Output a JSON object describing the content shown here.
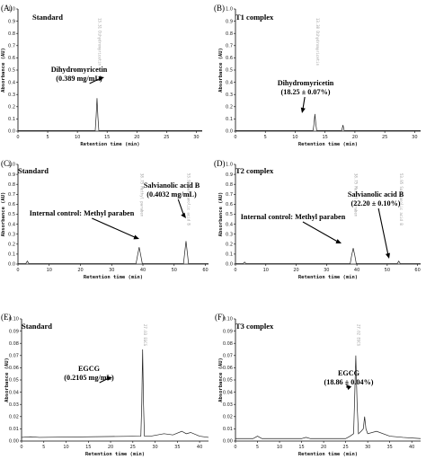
{
  "chart_data": [
    {
      "panel": "(A)",
      "title": "Standard",
      "type": "line",
      "xlabel": "Retention time (min)",
      "ylabel": "Absorbance (AU)",
      "xlim": [
        0,
        31
      ],
      "ylim": [
        0,
        1.0
      ],
      "xticks": [
        "0",
        "5",
        "10",
        "15",
        "20",
        "25",
        "30"
      ],
      "yticks": [
        "0.0",
        "0.1",
        "0.2",
        "0.3",
        "0.4",
        "0.5",
        "0.6",
        "0.7",
        "0.8",
        "0.9",
        "1.0"
      ],
      "series": [
        {
          "x": [
            0,
            13.0,
            13.15,
            13.3,
            13.45,
            13.6,
            31
          ],
          "y": [
            0.005,
            0.005,
            0.12,
            0.27,
            0.12,
            0.005,
            0.005
          ]
        }
      ],
      "peak_label": "13.31  Dihydromyricetin",
      "annotation": {
        "text": [
          "Dihydromyricetin",
          "(0.389 mg/mL)"
        ],
        "x": 13.3,
        "y": 0.27
      }
    },
    {
      "panel": "(B)",
      "title": "T1 complex",
      "type": "line",
      "xlabel": "Retention time (min)",
      "ylabel": "Absorbance (AU)",
      "xlim": [
        0,
        31
      ],
      "ylim": [
        0,
        1.0
      ],
      "xticks": [
        "0",
        "5",
        "10",
        "15",
        "20",
        "25",
        "30"
      ],
      "yticks": [
        "0.0",
        "0.1",
        "0.2",
        "0.3",
        "0.4",
        "0.5",
        "0.6",
        "0.7",
        "0.8",
        "0.9",
        "1.0"
      ],
      "series": [
        {
          "x": [
            0,
            13.0,
            13.15,
            13.3,
            13.45,
            13.6,
            17.8,
            18.0,
            18.2,
            31
          ],
          "y": [
            0.005,
            0.005,
            0.06,
            0.14,
            0.06,
            0.005,
            0.005,
            0.05,
            0.005,
            0.005
          ]
        }
      ],
      "peak_label": "13.30  Dihydromyricetin",
      "annotation": {
        "text": [
          "Dihydromyricetin",
          "(18.25 ± 0.07%)"
        ],
        "x": 13.3,
        "y": 0.14
      }
    },
    {
      "panel": "(C)",
      "title": "Standard",
      "type": "line",
      "xlabel": "Retention time (min)",
      "ylabel": "Absorbance (AU)",
      "xlim": [
        0,
        61
      ],
      "ylim": [
        0,
        1.0
      ],
      "xticks": [
        "0",
        "10",
        "20",
        "30",
        "40",
        "50",
        "60"
      ],
      "yticks": [
        "0.0",
        "0.1",
        "0.2",
        "0.3",
        "0.4",
        "0.5",
        "0.6",
        "0.7",
        "0.8",
        "0.9",
        "1.0"
      ],
      "series": [
        {
          "x": [
            0,
            2.5,
            3,
            3.5,
            37.8,
            38.3,
            38.8,
            39.3,
            39.8,
            53.0,
            53.4,
            53.8,
            54.2,
            54.6,
            61
          ],
          "y": [
            0.005,
            0.005,
            0.03,
            0.005,
            0.005,
            0.09,
            0.17,
            0.09,
            0.005,
            0.005,
            0.12,
            0.23,
            0.12,
            0.005,
            0.005
          ]
        }
      ],
      "peak_labels": [
        "38.75  Methyl paraben",
        "53.95  Salvianolic acid B"
      ],
      "annotations": [
        {
          "text": [
            "Internal control: Methyl paraben"
          ],
          "x": 38.8,
          "y": 0.17
        },
        {
          "text": [
            "Salvianolic acid B",
            "(0.4032 mg/mL)"
          ],
          "x": 53.8,
          "y": 0.23
        }
      ]
    },
    {
      "panel": "(D)",
      "title": "T2 complex",
      "type": "line",
      "xlabel": "Retention time (min)",
      "ylabel": "Absorbance (AU)",
      "xlim": [
        0,
        61
      ],
      "ylim": [
        0,
        1.0
      ],
      "xticks": [
        "0",
        "10",
        "20",
        "30",
        "40",
        "50",
        "60"
      ],
      "yticks": [
        "0.0",
        "0.1",
        "0.2",
        "0.3",
        "0.4",
        "0.5",
        "0.6",
        "0.7",
        "0.8",
        "0.9",
        "1.0"
      ],
      "series": [
        {
          "x": [
            0,
            2.5,
            3,
            3.5,
            37.8,
            38.3,
            38.8,
            39.3,
            39.8,
            53.3,
            53.8,
            54.3,
            61
          ],
          "y": [
            0.005,
            0.005,
            0.02,
            0.005,
            0.005,
            0.09,
            0.16,
            0.09,
            0.005,
            0.005,
            0.03,
            0.005,
            0.005
          ]
        }
      ],
      "peak_labels": [
        "38.75  Methyl paraben",
        "53.95  Salvianolic acid B"
      ],
      "annotations": [
        {
          "text": [
            "Internal control: Methyl paraben"
          ],
          "x": 38.8,
          "y": 0.16
        },
        {
          "text": [
            "Salvianolic acid B",
            "(22.20 ± 0.10%)"
          ],
          "x": 53.8,
          "y": 0.03
        }
      ]
    },
    {
      "panel": "(E)",
      "title": "Standard",
      "type": "line",
      "xlabel": "Retention time (min)",
      "ylabel": "Absorbance (AU)",
      "xlim": [
        0,
        42
      ],
      "ylim": [
        0,
        0.1
      ],
      "xticks": [
        "0",
        "5",
        "10",
        "15",
        "20",
        "25",
        "30",
        "35",
        "40"
      ],
      "yticks": [
        "0.00",
        "0.01",
        "0.02",
        "0.03",
        "0.04",
        "0.05",
        "0.06",
        "0.07",
        "0.08",
        "0.09",
        "0.10"
      ],
      "series": [
        {
          "x": [
            0,
            2,
            4,
            26.8,
            27.0,
            27.2,
            27.4,
            27.6,
            29,
            32,
            34,
            36,
            37,
            38,
            40,
            42
          ],
          "y": [
            0.003,
            0.0035,
            0.003,
            0.004,
            0.03,
            0.075,
            0.03,
            0.004,
            0.004,
            0.006,
            0.005,
            0.008,
            0.006,
            0.007,
            0.004,
            0.003
          ]
        }
      ],
      "peak_label": "27.03  EGCG",
      "annotation": {
        "text": [
          "EGCG",
          "(0.2105 mg/mL)"
        ],
        "x": 27.2,
        "y": 0.075
      }
    },
    {
      "panel": "(F)",
      "title": "T3 complex",
      "type": "line",
      "xlabel": "Retention time (min)",
      "ylabel": "Absorbance (AU)",
      "xlim": [
        0,
        42
      ],
      "ylim": [
        0,
        0.1
      ],
      "xticks": [
        "0",
        "5",
        "10",
        "15",
        "20",
        "25",
        "30",
        "35",
        "40"
      ],
      "yticks": [
        "0.00",
        "0.01",
        "0.02",
        "0.03",
        "0.04",
        "0.05",
        "0.06",
        "0.07",
        "0.08",
        "0.09",
        "0.10"
      ],
      "series": [
        {
          "x": [
            0,
            4,
            5,
            6,
            15,
            16,
            17,
            25,
            26,
            26.8,
            27.0,
            27.3,
            27.6,
            27.9,
            28.5,
            29.0,
            29.3,
            29.6,
            30,
            32,
            35,
            38,
            42
          ],
          "y": [
            0.002,
            0.002,
            0.004,
            0.002,
            0.002,
            0.003,
            0.002,
            0.002,
            0.004,
            0.006,
            0.03,
            0.07,
            0.03,
            0.006,
            0.008,
            0.01,
            0.02,
            0.01,
            0.006,
            0.008,
            0.004,
            0.003,
            0.002
          ]
        }
      ],
      "peak_label": "27.02  EGCG",
      "annotation": {
        "text": [
          "EGCG",
          "(18.86 ± 0.04%)"
        ],
        "x": 27.3,
        "y": 0.07
      }
    }
  ]
}
